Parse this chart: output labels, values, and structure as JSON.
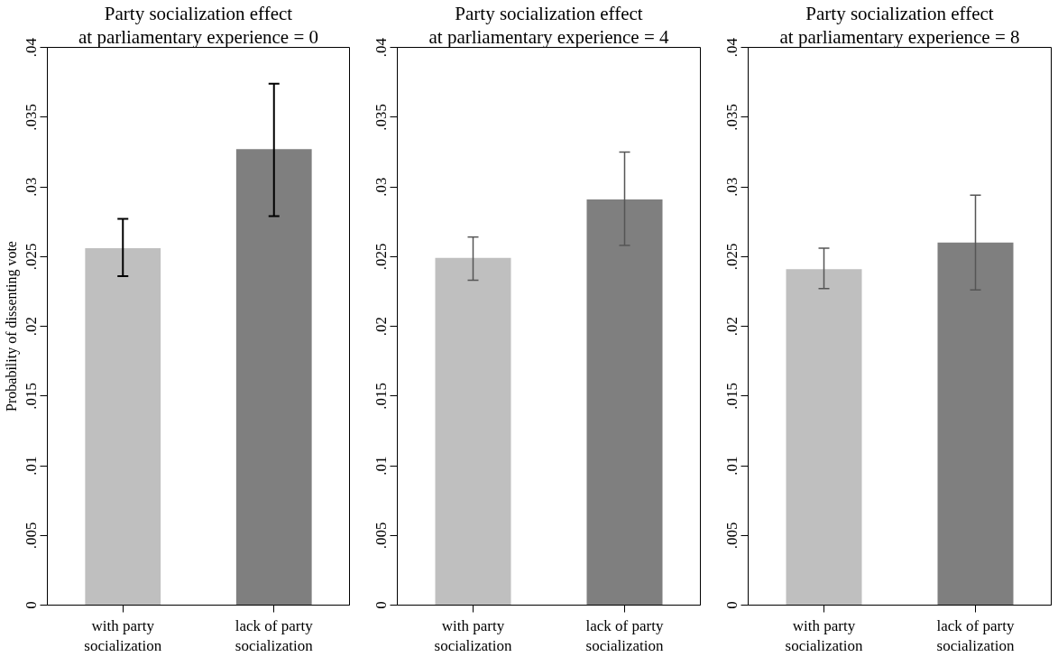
{
  "chart_data": [
    {
      "type": "bar",
      "title": "Party socialization effect",
      "subtitle": "at parliamentary experience = 0",
      "ylabel": "Probability of dissenting vote",
      "categories": [
        "with party\nsocialization",
        "lack of party\nsocialization"
      ],
      "values": [
        0.0256,
        0.0327
      ],
      "colors": [
        "#bfbfbf",
        "#7f7f7f"
      ],
      "errors": [
        [
          0.0236,
          0.0277
        ],
        [
          0.0279,
          0.0374
        ]
      ],
      "ylim": [
        0,
        0.04
      ],
      "yticks": [
        {
          "value": 0,
          "label": "0"
        },
        {
          "value": 0.005,
          "label": ".005"
        },
        {
          "value": 0.01,
          "label": ".01"
        },
        {
          "value": 0.015,
          "label": ".015"
        },
        {
          "value": 0.02,
          "label": ".02"
        },
        {
          "value": 0.025,
          "label": ".025"
        },
        {
          "value": 0.03,
          "label": ".03"
        },
        {
          "value": 0.035,
          "label": ".035"
        },
        {
          "value": 0.04,
          "label": ".04"
        }
      ],
      "grid": false
    },
    {
      "type": "bar",
      "title": "Party socialization effect",
      "subtitle": "at parliamentary experience = 4",
      "categories": [
        "with party\nsocialization",
        "lack of party\nsocialization"
      ],
      "values": [
        0.0249,
        0.0291
      ],
      "colors": [
        "#bfbfbf",
        "#7f7f7f"
      ],
      "errors": [
        [
          0.0233,
          0.0264
        ],
        [
          0.0258,
          0.0325
        ]
      ],
      "ylim": [
        0,
        0.04
      ],
      "yticks": [
        {
          "value": 0,
          "label": "0"
        },
        {
          "value": 0.005,
          "label": ".005"
        },
        {
          "value": 0.01,
          "label": ".01"
        },
        {
          "value": 0.015,
          "label": ".015"
        },
        {
          "value": 0.02,
          "label": ".02"
        },
        {
          "value": 0.025,
          "label": ".025"
        },
        {
          "value": 0.03,
          "label": ".03"
        },
        {
          "value": 0.035,
          "label": ".035"
        },
        {
          "value": 0.04,
          "label": ".04"
        }
      ],
      "grid": false
    },
    {
      "type": "bar",
      "title": "Party socialization effect",
      "subtitle": "at parliamentary experience = 8",
      "categories": [
        "with party\nsocialization",
        "lack of party\nsocialization"
      ],
      "values": [
        0.0241,
        0.026
      ],
      "colors": [
        "#bfbfbf",
        "#7f7f7f"
      ],
      "errors": [
        [
          0.0227,
          0.0256
        ],
        [
          0.0226,
          0.0294
        ]
      ],
      "ylim": [
        0,
        0.04
      ],
      "yticks": [
        {
          "value": 0,
          "label": "0"
        },
        {
          "value": 0.005,
          "label": ".005"
        },
        {
          "value": 0.01,
          "label": ".01"
        },
        {
          "value": 0.015,
          "label": ".015"
        },
        {
          "value": 0.02,
          "label": ".02"
        },
        {
          "value": 0.025,
          "label": ".025"
        },
        {
          "value": 0.03,
          "label": ".03"
        },
        {
          "value": 0.035,
          "label": ".035"
        },
        {
          "value": 0.04,
          "label": ".04"
        }
      ],
      "grid": false
    }
  ]
}
